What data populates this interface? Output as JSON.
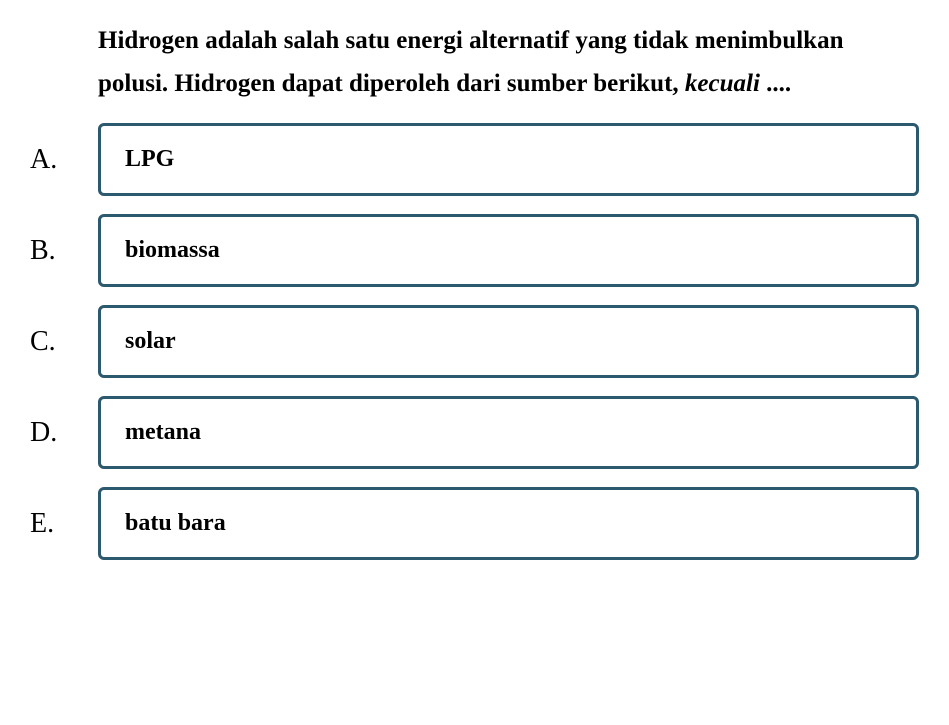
{
  "question": {
    "text_part1": "Hidrogen adalah salah satu energi alternatif yang tidak menimbulkan polusi. Hidrogen dapat diperoleh dari sumber berikut, ",
    "text_italic": "kecuali",
    "text_part2": " ....",
    "font_size": 25,
    "font_weight": "bold",
    "color": "#000000"
  },
  "options": [
    {
      "letter": "A.",
      "text": "LPG"
    },
    {
      "letter": "B.",
      "text": "biomassa"
    },
    {
      "letter": "C.",
      "text": "solar"
    },
    {
      "letter": "D.",
      "text": "metana"
    },
    {
      "letter": "E.",
      "text": "batu bara"
    }
  ],
  "styling": {
    "background_color": "#ffffff",
    "option_border_color": "#2b5a6e",
    "option_border_width": 3,
    "option_border_radius": 6,
    "option_font_size": 24,
    "option_font_weight": "bold",
    "option_letter_font_size": 28,
    "option_letter_font_family": "Times New Roman",
    "option_gap": 18
  }
}
